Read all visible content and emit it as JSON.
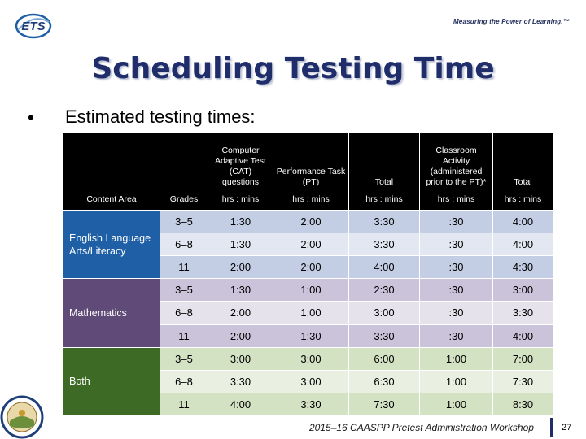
{
  "header": {
    "logo_text": "ETS",
    "tagline": "Measuring the Power of Learning.™"
  },
  "slide": {
    "title": "Scheduling Testing Time",
    "bullet_symbol": "•",
    "bullet_text": "Estimated testing times:"
  },
  "table": {
    "headers": {
      "content_area": "Content Area",
      "grades": "Grades",
      "cat": "Computer Adaptive Test (CAT) questions",
      "cat_units": "hrs : mins",
      "pt": "Performance Task (PT)",
      "pt_units": "hrs : mins",
      "total1": "Total",
      "total1_units": "hrs : mins",
      "ca": "Classroom Activity (administered prior to the PT)*",
      "ca_units": "hrs : mins",
      "total2": "Total",
      "total2_units": "hrs : mins"
    },
    "groups": [
      {
        "area": "English Language Arts/Literacy",
        "rows": [
          {
            "grade": "3–5",
            "cat": "1:30",
            "pt": "2:00",
            "total": "3:30",
            "ca": ":30",
            "total2": "4:00"
          },
          {
            "grade": "6–8",
            "cat": "1:30",
            "pt": "2:00",
            "total": "3:30",
            "ca": ":30",
            "total2": "4:00"
          },
          {
            "grade": "11",
            "cat": "2:00",
            "pt": "2:00",
            "total": "4:00",
            "ca": ":30",
            "total2": "4:30"
          }
        ]
      },
      {
        "area": "Mathematics",
        "rows": [
          {
            "grade": "3–5",
            "cat": "1:30",
            "pt": "1:00",
            "total": "2:30",
            "ca": ":30",
            "total2": "3:00"
          },
          {
            "grade": "6–8",
            "cat": "2:00",
            "pt": "1:00",
            "total": "3:00",
            "ca": ":30",
            "total2": "3:30"
          },
          {
            "grade": "11",
            "cat": "2:00",
            "pt": "1:30",
            "total": "3:30",
            "ca": ":30",
            "total2": "4:00"
          }
        ]
      },
      {
        "area": "Both",
        "rows": [
          {
            "grade": "3–5",
            "cat": "3:00",
            "pt": "3:00",
            "total": "6:00",
            "ca": "1:00",
            "total2": "7:00"
          },
          {
            "grade": "6–8",
            "cat": "3:30",
            "pt": "3:00",
            "total": "6:30",
            "ca": "1:00",
            "total2": "7:30"
          },
          {
            "grade": "11",
            "cat": "4:00",
            "pt": "3:30",
            "total": "7:30",
            "ca": "1:00",
            "total2": "8:30"
          }
        ]
      }
    ]
  },
  "footer": {
    "text": "2015–16 CAASPP Pretest Administration Workshop",
    "page_number": "27"
  },
  "colors": {
    "title": "#1f2d6b",
    "ela": "#1f5fa5",
    "math": "#5f4a78",
    "both": "#3d6b26"
  },
  "icons": {
    "logo": "ets-logo-icon",
    "seal": "state-seal-icon"
  }
}
